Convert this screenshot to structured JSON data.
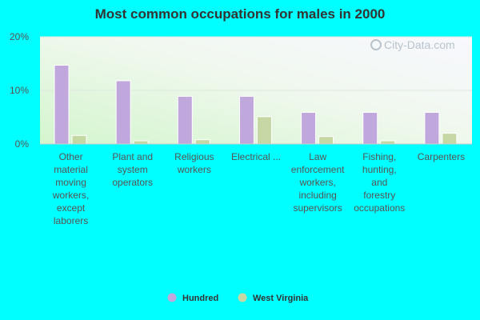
{
  "chart_data": {
    "type": "bar",
    "title": "Most common occupations for males in 2000",
    "xlabel": "",
    "ylabel": "",
    "ylim": [
      0,
      20
    ],
    "yticks": [
      "0%",
      "10%",
      "20%"
    ],
    "categories": [
      "Other material moving workers, except laborers",
      "Plant and system operators",
      "Religious workers",
      "Electrical ...",
      "Law enforcement workers, including supervisors",
      "Fishing, hunting, and forestry occupations",
      "Carpenters"
    ],
    "category_lines": [
      [
        "Other",
        "material",
        "moving",
        "workers,",
        "except",
        "laborers"
      ],
      [
        "Plant and",
        "system",
        "operators"
      ],
      [
        "Religious",
        "workers"
      ],
      [
        "Electrical ..."
      ],
      [
        "Law",
        "enforcement",
        "workers,",
        "including",
        "supervisors"
      ],
      [
        "Fishing,",
        "hunting,",
        "and",
        "forestry",
        "occupations"
      ],
      [
        "Carpenters"
      ]
    ],
    "series": [
      {
        "name": "Hundred",
        "color": "#c0a8dc",
        "values": [
          14.7,
          11.8,
          8.9,
          8.9,
          5.9,
          5.9,
          5.9
        ]
      },
      {
        "name": "West Virginia",
        "color": "#c5d8a4",
        "values": [
          1.6,
          0.6,
          0.8,
          5.1,
          1.4,
          0.6,
          2.0
        ]
      }
    ],
    "grid": true,
    "legend_position": "bottom",
    "watermark": "City-Data.com"
  }
}
